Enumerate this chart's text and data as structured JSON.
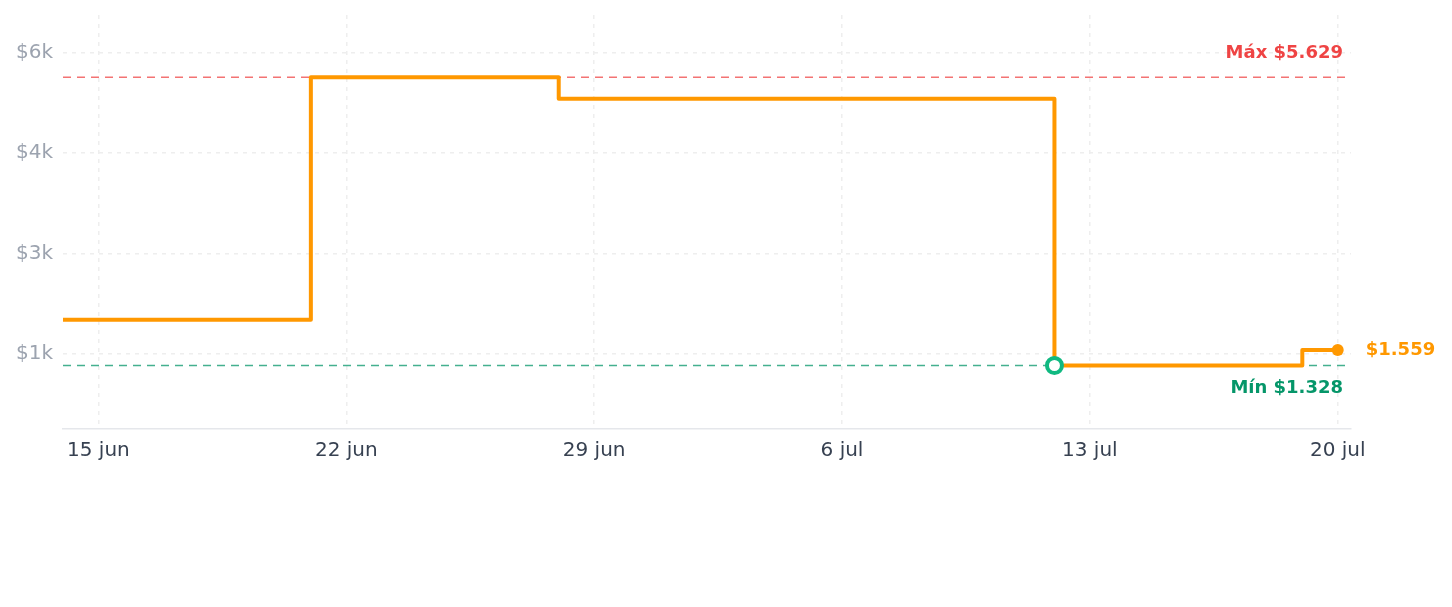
{
  "chart_data": {
    "type": "step",
    "x": [
      "--06-14",
      "--06-21",
      "--06-28",
      "--07-12",
      "--07-19",
      "--07-20"
    ],
    "series": [
      {
        "color": "#ff9800",
        "values": [
          2010,
          5629,
          5310,
          1328,
          1559,
          1559
        ]
      },
      {
        "type": "scatter",
        "color": "#10b981",
        "x": [
          "--07-12"
        ],
        "values": [
          1328
        ],
        "marker": "circle"
      },
      {
        "type": "scatter",
        "color": "#ff9800",
        "x": [
          "--07-20"
        ],
        "values": [
          1559
        ],
        "marker": "circle",
        "value_labels": [
          "$1.559"
        ]
      }
    ],
    "xlim": [
      "--06-14",
      "--07-20T09:00"
    ],
    "xticks": [
      {
        "value": "--06-15",
        "label": "15 jun"
      },
      {
        "value": "--06-22",
        "label": "22 jun"
      },
      {
        "value": "--06-29",
        "label": "29 jun"
      },
      {
        "value": "--07-06",
        "label": "6 jul"
      },
      {
        "value": "--07-13",
        "label": "13 jul"
      },
      {
        "value": "--07-20",
        "label": "20 jul"
      }
    ],
    "ylim": [
      380,
      6560
    ],
    "yticks": [
      {
        "value": 1500,
        "label": "$1k"
      },
      {
        "value": 3000,
        "label": "$3k"
      },
      {
        "value": 4500,
        "label": "$4k"
      },
      {
        "value": 6000,
        "label": "$6k"
      }
    ],
    "ref_lines": [
      {
        "axis": "y",
        "value": 5629,
        "label": "Máx $5.629",
        "color": "#ef4444",
        "line_style": "dashed"
      },
      {
        "axis": "y",
        "value": 1328,
        "label": "Mín $1.328",
        "color": "#059669",
        "line_style": "dashed"
      }
    ],
    "grid": true
  }
}
